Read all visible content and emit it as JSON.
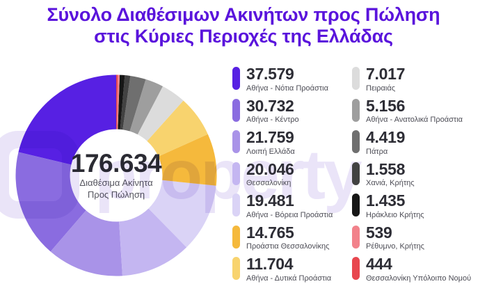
{
  "title": {
    "line1": "Σύνολο Διαθέσιμων Ακινήτων προς Πώληση",
    "line2": "στις Κύριες Περιοχές της Ελλάδας",
    "color": "#5A14DC"
  },
  "center": {
    "total": "176.634",
    "label_line1": "Διαθέσιμα Ακίνητα",
    "label_line2": "Προς Πώληση"
  },
  "watermark": "property",
  "chart_data": {
    "type": "pie",
    "title": "Σύνολο Διαθέσιμων Ακινήτων προς Πώληση στις Κύριες Περιοχές της Ελλάδας",
    "total": 176634,
    "total_display": "176.634",
    "direction": "counterclockwise",
    "start_angle_deg": 0,
    "inner_radius_ratio": 0.455,
    "legend_position": "right",
    "legend_columns": 2,
    "slices": [
      {
        "label": "Αθήνα - Νότια Προάστια",
        "value": 37579,
        "display": "37.579",
        "color": "#5720E3"
      },
      {
        "label": "Αθήνα - Κέντρο",
        "value": 30732,
        "display": "30.732",
        "color": "#8A6CE0"
      },
      {
        "label": "Λοιπή Ελλάδα",
        "value": 21759,
        "display": "21.759",
        "color": "#A993E8"
      },
      {
        "label": "Θεσσαλονίκη",
        "value": 20046,
        "display": "20.046",
        "color": "#C4B6F1"
      },
      {
        "label": "Αθήνα - Βόρεια Προάστια",
        "value": 19481,
        "display": "19.481",
        "color": "#DAD3F6"
      },
      {
        "label": "Προάστια Θεσσαλονίκης",
        "value": 14765,
        "display": "14.765",
        "color": "#F5B93C"
      },
      {
        "label": "Αθήνα - Δυτικά Προάστια",
        "value": 11704,
        "display": "11.704",
        "color": "#F8D36E"
      },
      {
        "label": "Πειραιάς",
        "value": 7017,
        "display": "7.017",
        "color": "#DCDCDC"
      },
      {
        "label": "Αθήνα - Ανατολικά Προάστια",
        "value": 5156,
        "display": "5.156",
        "color": "#9E9E9E"
      },
      {
        "label": "Πάτρα",
        "value": 4419,
        "display": "4.419",
        "color": "#6F6F6F"
      },
      {
        "label": "Χανιά, Κρήτης",
        "value": 1558,
        "display": "1.558",
        "color": "#424242"
      },
      {
        "label": "Ηράκλειο Κρήτης",
        "value": 1435,
        "display": "1.435",
        "color": "#161616"
      },
      {
        "label": "Ρέθυμνο, Κρήτης",
        "value": 539,
        "display": "539",
        "color": "#F2828B"
      },
      {
        "label": "Θεσσαλονίκη Υπόλοιπο Νομού",
        "value": 444,
        "display": "444",
        "color": "#E8474F"
      }
    ]
  }
}
